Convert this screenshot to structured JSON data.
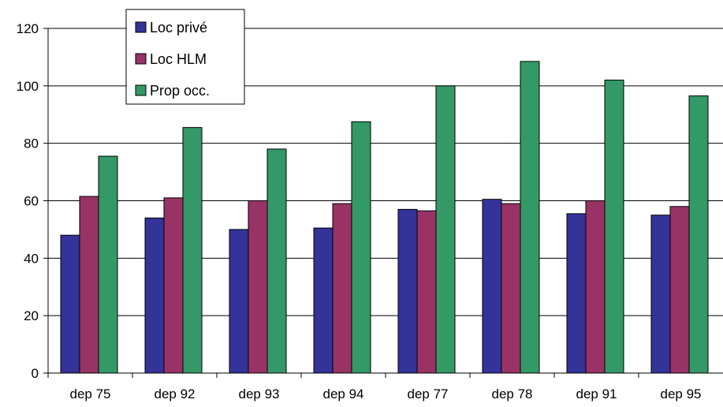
{
  "chart_data": {
    "type": "bar",
    "title": "",
    "xlabel": "",
    "ylabel": "",
    "ylim": [
      0,
      120
    ],
    "yticks": [
      0,
      20,
      40,
      60,
      80,
      100,
      120
    ],
    "grid": true,
    "legend_position": "top-left",
    "categories": [
      "dep 75",
      "dep 92",
      "dep 93",
      "dep 94",
      "dep 77",
      "dep 78",
      "dep 91",
      "dep 95"
    ],
    "series": [
      {
        "name": "Loc privé",
        "color": "#333399",
        "values": [
          48,
          54,
          50,
          50.5,
          57,
          60.5,
          55.5,
          55
        ]
      },
      {
        "name": "Loc HLM",
        "color": "#993366",
        "values": [
          61.5,
          61,
          60,
          59,
          56.5,
          59,
          60,
          58
        ]
      },
      {
        "name": "Prop occ.",
        "color": "#339966",
        "values": [
          75.5,
          85.5,
          78,
          87.5,
          100,
          108.5,
          102,
          96.5
        ]
      }
    ]
  }
}
